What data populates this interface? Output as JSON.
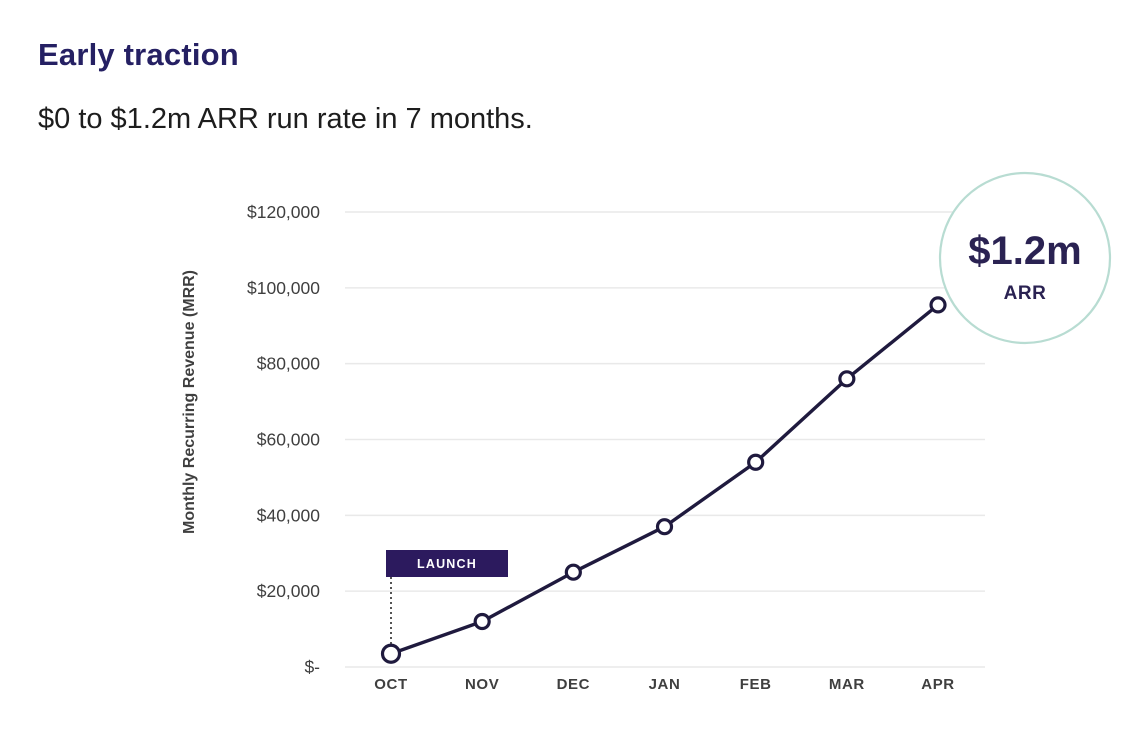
{
  "header": {
    "title": "Early traction",
    "subtitle": "$0 to $1.2m ARR run rate in 7 months."
  },
  "colors": {
    "title": "#252063",
    "subtitle": "#1d1d1d",
    "axis_text": "#3f3f3f",
    "grid": "#e9e9e9",
    "line": "#1f1a3e",
    "launch_bg": "#2c1a5e",
    "launch_text": "#ffffff",
    "callout_border": "#b8dcd2",
    "callout_text": "#2a2252"
  },
  "chart_data": {
    "type": "line",
    "title": "",
    "xlabel": "",
    "ylabel": "Monthly Recurring Revenue (MRR)",
    "categories": [
      "OCT",
      "NOV",
      "DEC",
      "JAN",
      "FEB",
      "MAR",
      "APR"
    ],
    "series": [
      {
        "name": "MRR",
        "values": [
          3500,
          12000,
          25000,
          37000,
          54000,
          76000,
          95500
        ]
      }
    ],
    "ylim": [
      0,
      120000
    ],
    "ytick_step": 20000,
    "ytick_labels": [
      "$-",
      "$20,000",
      "$40,000",
      "$60,000",
      "$80,000",
      "$100,000",
      "$120,000"
    ],
    "grid": "horizontal",
    "legend": "none",
    "annotations": {
      "launch_label": "LAUNCH",
      "launch_at": "OCT",
      "callout_value": "$1.2m",
      "callout_label": "ARR"
    }
  }
}
